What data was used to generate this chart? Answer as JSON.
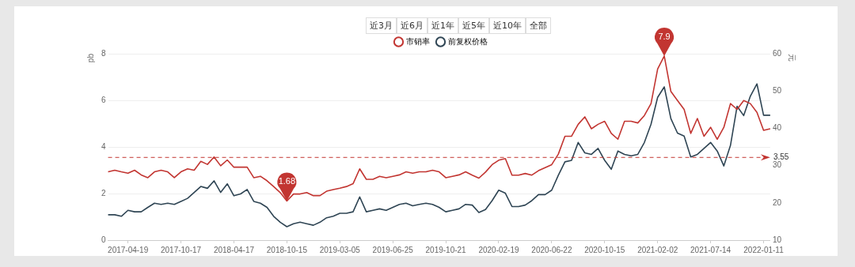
{
  "chart_data": {
    "type": "line",
    "ylabel": "pb",
    "y2label": "元",
    "categories": [
      null,
      null,
      null,
      "2017-04-19",
      null,
      null,
      null,
      null,
      null,
      null,
      null,
      "2017-10-17",
      null,
      null,
      null,
      null,
      null,
      null,
      null,
      "2018-04-17",
      null,
      null,
      null,
      null,
      null,
      null,
      null,
      "2018-10-15",
      null,
      null,
      null,
      null,
      null,
      null,
      null,
      "2019-03-05",
      null,
      null,
      null,
      null,
      null,
      null,
      null,
      "2019-06-25",
      null,
      null,
      null,
      null,
      null,
      null,
      null,
      "2019-10-21",
      null,
      null,
      null,
      null,
      null,
      null,
      null,
      "2020-02-19",
      null,
      null,
      null,
      null,
      null,
      null,
      null,
      "2020-06-22",
      null,
      null,
      null,
      null,
      null,
      null,
      null,
      "2020-10-15",
      null,
      null,
      null,
      null,
      null,
      null,
      null,
      "2021-02-02",
      null,
      null,
      null,
      null,
      null,
      null,
      null,
      "2021-07-14",
      null,
      null,
      null,
      null,
      null,
      null,
      null,
      "2022-01-11",
      null
    ],
    "series": [
      {
        "name": "市销率",
        "color": "#c23531",
        "values": [
          2.93,
          3.0,
          2.93,
          2.87,
          3.0,
          2.8,
          2.68,
          2.93,
          3.0,
          2.93,
          2.68,
          2.93,
          3.06,
          3.0,
          3.38,
          3.25,
          3.57,
          3.19,
          3.44,
          3.13,
          3.13,
          3.13,
          2.68,
          2.74,
          2.55,
          2.3,
          2.04,
          1.68,
          1.98,
          1.98,
          2.04,
          1.91,
          1.91,
          2.1,
          2.17,
          2.23,
          2.3,
          2.42,
          3.06,
          2.61,
          2.61,
          2.74,
          2.68,
          2.74,
          2.8,
          2.93,
          2.87,
          2.93,
          2.93,
          3.0,
          2.93,
          2.68,
          2.74,
          2.8,
          2.93,
          2.79,
          2.66,
          2.92,
          3.24,
          3.43,
          3.5,
          2.79,
          2.79,
          2.86,
          2.79,
          2.98,
          3.11,
          3.24,
          3.69,
          4.46,
          4.46,
          4.97,
          5.29,
          4.78,
          4.97,
          5.1,
          4.58,
          4.33,
          5.1,
          5.1,
          5.03,
          5.35,
          5.86,
          7.34,
          7.9,
          6.38,
          5.99,
          5.61,
          4.58,
          5.22,
          4.46,
          4.84,
          4.33,
          4.84,
          5.86,
          5.61,
          5.99,
          5.86,
          5.48,
          4.71,
          4.78
        ]
      },
      {
        "name": "前复权价格",
        "color": "#2f4554",
        "axis": "y2",
        "values": [
          16.8,
          16.8,
          16.4,
          18.0,
          17.6,
          17.6,
          18.8,
          19.9,
          19.6,
          19.9,
          19.6,
          20.4,
          21.2,
          22.8,
          24.4,
          23.9,
          25.9,
          22.8,
          25.1,
          21.9,
          22.4,
          23.6,
          20.4,
          19.9,
          18.8,
          16.4,
          14.8,
          13.6,
          14.4,
          14.8,
          14.4,
          14.0,
          14.8,
          16.0,
          16.4,
          17.2,
          17.2,
          17.6,
          21.6,
          17.6,
          18.0,
          18.4,
          18.0,
          18.8,
          19.6,
          19.9,
          19.2,
          19.6,
          19.9,
          19.6,
          18.8,
          17.6,
          18.0,
          18.4,
          19.6,
          19.4,
          17.4,
          18.2,
          20.6,
          23.4,
          22.6,
          19.0,
          19.0,
          19.4,
          20.6,
          22.2,
          22.2,
          23.4,
          27.4,
          31.0,
          31.4,
          36.2,
          33.4,
          33.0,
          34.6,
          31.4,
          29.0,
          33.9,
          33.0,
          32.6,
          33.0,
          36.2,
          41.1,
          48.3,
          51.1,
          42.6,
          38.7,
          37.9,
          32.3,
          33.0,
          34.6,
          36.2,
          33.9,
          29.9,
          35.4,
          45.9,
          43.4,
          48.6,
          51.9,
          43.5,
          43.5
        ]
      }
    ],
    "ylim": [
      0,
      8
    ],
    "yticks": [
      0,
      2,
      4,
      6,
      8
    ],
    "y2lim": [
      10,
      60
    ],
    "y2ticks": [
      10,
      20,
      30,
      40,
      50,
      60
    ],
    "grid": "y",
    "legend": "top",
    "marker": "none",
    "line_style": "solid",
    "ref_lines": [
      {
        "axis": "y",
        "value": 3.55,
        "label": "3.55",
        "color": "#c23531",
        "line_style": "dashed"
      }
    ],
    "annotations": [
      "近3月",
      "近6月",
      "近1年",
      "近5年",
      "近10年",
      "全部",
      {
        "text": "7.9",
        "y": 7.9
      },
      {
        "text": "1.68",
        "y": 1.68
      }
    ]
  }
}
